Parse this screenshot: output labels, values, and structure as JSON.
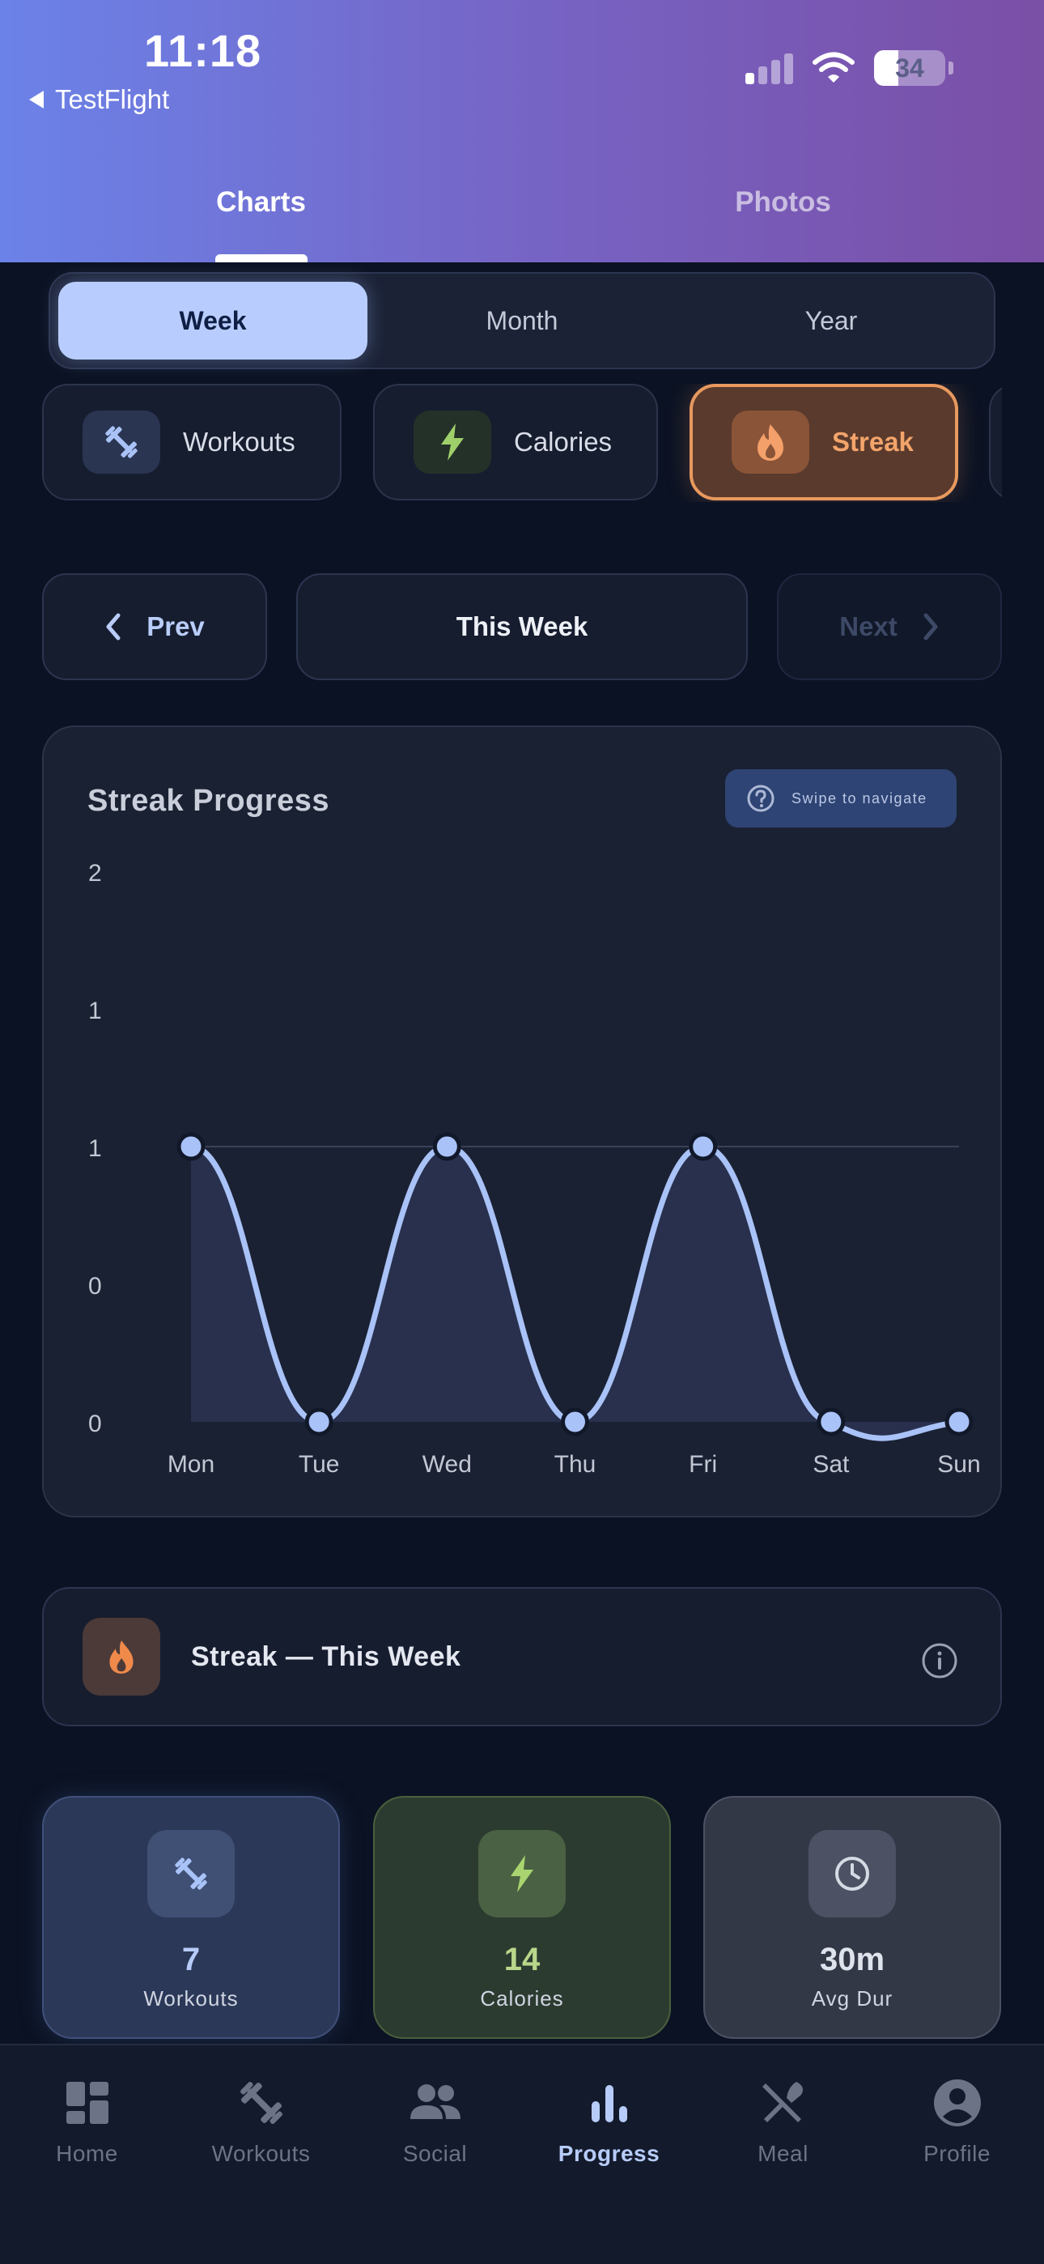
{
  "status_bar": {
    "time": "11:18",
    "back_label": "TestFlight",
    "battery": "34"
  },
  "top_tabs": [
    {
      "label": "Charts",
      "active": true
    },
    {
      "label": "Photos",
      "active": false
    }
  ],
  "periods": [
    {
      "label": "Week",
      "active": true
    },
    {
      "label": "Month",
      "active": false
    },
    {
      "label": "Year",
      "active": false
    }
  ],
  "metrics": [
    {
      "label": "Workouts",
      "icon": "dumbbell-icon",
      "active": false
    },
    {
      "label": "Calories",
      "icon": "bolt-icon",
      "active": false
    },
    {
      "label": "Streak",
      "icon": "flame-icon",
      "active": true
    }
  ],
  "week_nav": {
    "prev": "Prev",
    "current": "This Week",
    "next": "Next"
  },
  "chart": {
    "title": "Streak Progress",
    "hint": "Swipe to navigate"
  },
  "chart_data": {
    "type": "area",
    "title": "Streak Progress",
    "categories": [
      "Mon",
      "Tue",
      "Wed",
      "Thu",
      "Fri",
      "Sat",
      "Sun"
    ],
    "values": [
      1,
      0,
      1,
      0,
      1,
      0,
      0
    ],
    "ytick_labels": [
      "2",
      "1",
      "1",
      "0",
      "0"
    ],
    "ylim": [
      0,
      2
    ],
    "smooth": true,
    "grid": false,
    "line_color": "#a9c2f7",
    "fill_color": "#2a3250"
  },
  "info_row": {
    "label": "Streak — This Week",
    "icon": "flame-icon"
  },
  "stats": [
    {
      "value": "7",
      "label": "Workouts",
      "icon": "dumbbell-icon"
    },
    {
      "value": "14",
      "label": "Calories",
      "icon": "bolt-icon"
    },
    {
      "value": "30m",
      "label": "Avg Dur",
      "icon": "clock-icon"
    }
  ],
  "tabbar": [
    {
      "label": "Home",
      "icon": "dashboard-icon",
      "active": false
    },
    {
      "label": "Workouts",
      "icon": "dumbbell-icon",
      "active": false
    },
    {
      "label": "Social",
      "icon": "people-icon",
      "active": false
    },
    {
      "label": "Progress",
      "icon": "bar-chart-icon",
      "active": true
    },
    {
      "label": "Meal",
      "icon": "utensils-icon",
      "active": false
    },
    {
      "label": "Profile",
      "icon": "account-icon",
      "active": false
    }
  ],
  "colors": {
    "accent": "#b8cdfd",
    "streak": "#e8995e",
    "background": "#0b1223"
  }
}
